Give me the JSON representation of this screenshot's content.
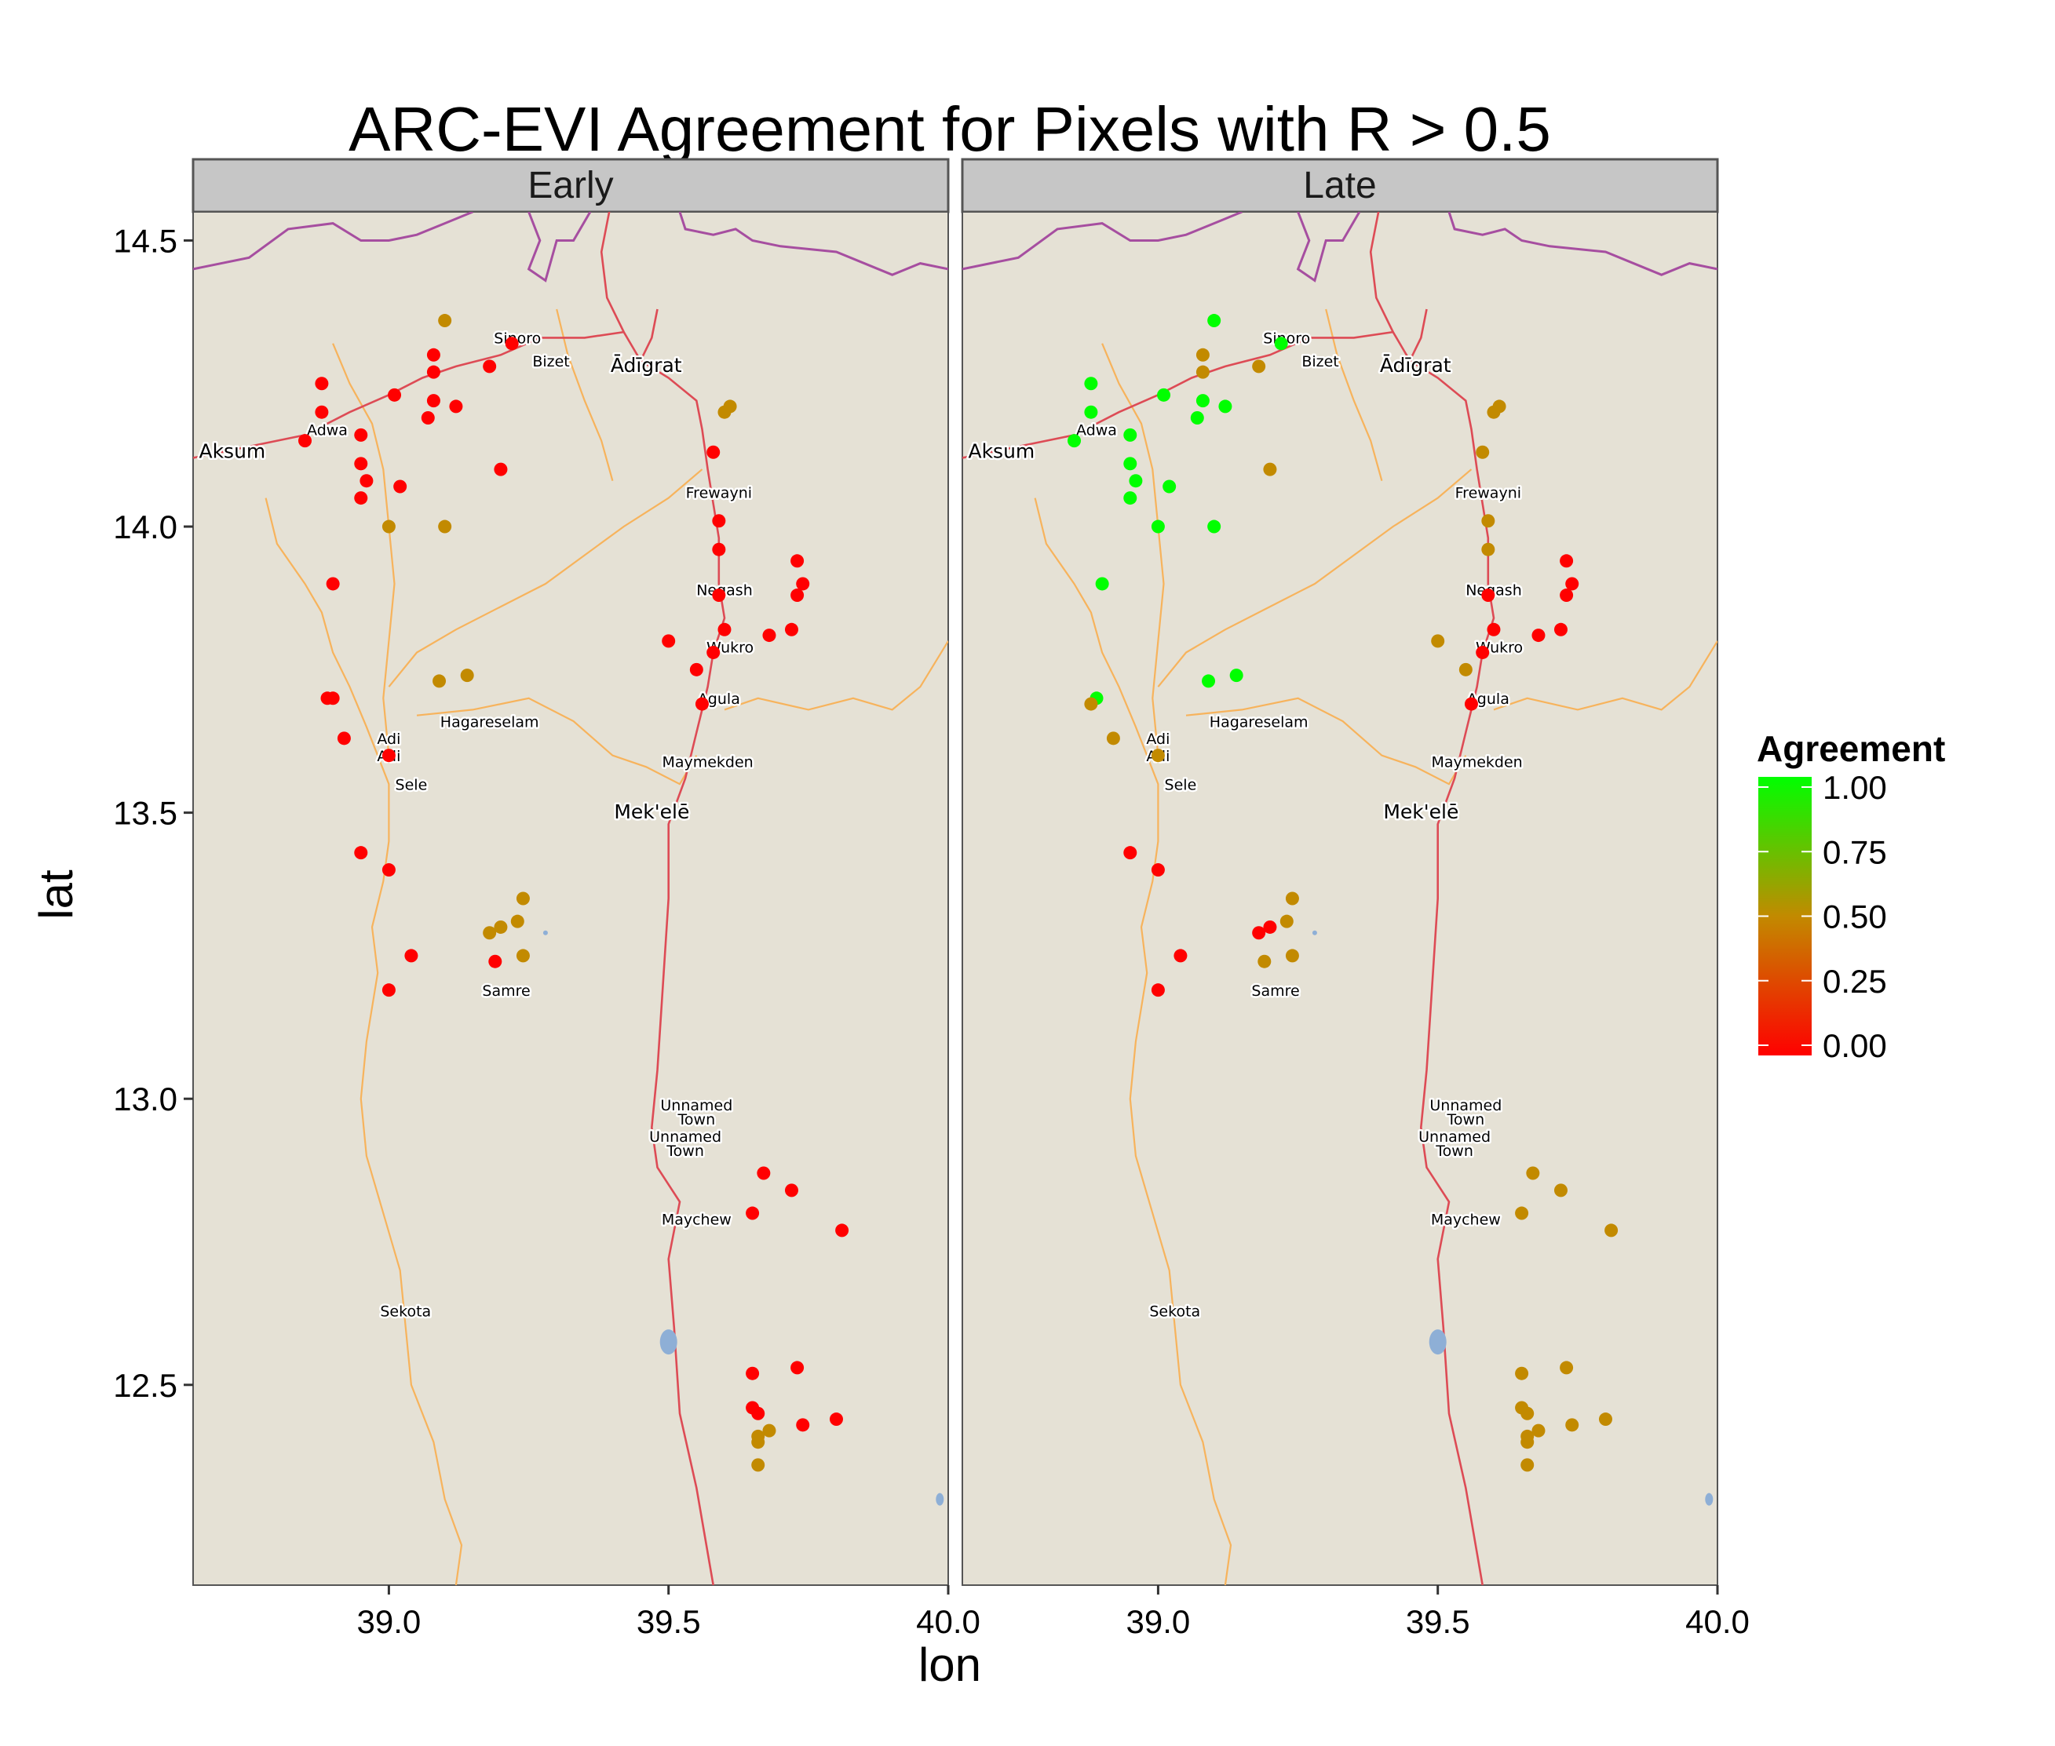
{
  "chart_data": {
    "type": "scatter",
    "title": "ARC-EVI Agreement for Pixels with R > 0.5",
    "xlabel": "lon",
    "ylabel": "lat",
    "xlim": [
      38.65,
      40.0
    ],
    "ylim": [
      12.15,
      14.55
    ],
    "x_ticks": [
      39.0,
      39.5,
      40.0
    ],
    "x_tick_labels": [
      "39.0",
      "39.5",
      "40.0"
    ],
    "y_ticks": [
      12.5,
      13.0,
      13.5,
      14.0,
      14.5
    ],
    "y_tick_labels": [
      "12.5",
      "13.0",
      "13.5",
      "14.0",
      "14.5"
    ],
    "grid": false,
    "legend": {
      "title": "Agreement",
      "position": "right",
      "ticks": [
        1.0,
        0.75,
        0.5,
        0.25,
        0.0
      ],
      "tick_labels": [
        "1.00",
        "0.75",
        "0.50",
        "0.25",
        "0.00"
      ],
      "gradient": [
        "#ff0000",
        "#c28a00",
        "#00ff00"
      ]
    },
    "colors": {
      "land": "#e5e1d5",
      "border": "#a64ea0",
      "road": "#dd4b55",
      "river": "#f7b35c",
      "water": "#8eafd6",
      "strip": "#c6c6c6"
    },
    "places": [
      {
        "name": "Sinoro",
        "lon": 39.23,
        "lat": 14.32,
        "major": false
      },
      {
        "name": "Bizet",
        "lon": 39.29,
        "lat": 14.28,
        "major": false
      },
      {
        "name": "Ādīgrat",
        "lon": 39.46,
        "lat": 14.27,
        "major": true
      },
      {
        "name": "Adwa",
        "lon": 38.89,
        "lat": 14.16,
        "major": false
      },
      {
        "name": "Aksum",
        "lon": 38.72,
        "lat": 14.12,
        "major": true
      },
      {
        "name": "Frewayni",
        "lon": 39.59,
        "lat": 14.05,
        "major": false
      },
      {
        "name": "Negash",
        "lon": 39.6,
        "lat": 13.88,
        "major": false
      },
      {
        "name": "Wukro",
        "lon": 39.61,
        "lat": 13.78,
        "major": false
      },
      {
        "name": "Agula",
        "lon": 39.59,
        "lat": 13.69,
        "major": false
      },
      {
        "name": "Hagareselam",
        "lon": 39.18,
        "lat": 13.65,
        "major": false
      },
      {
        "name": "Adi",
        "lon": 39.0,
        "lat": 13.62,
        "major": false
      },
      {
        "name": "Adi",
        "lon": 39.0,
        "lat": 13.59,
        "major": false
      },
      {
        "name": "Maymekden",
        "lon": 39.57,
        "lat": 13.58,
        "major": false
      },
      {
        "name": "Sele",
        "lon": 39.04,
        "lat": 13.54,
        "major": false
      },
      {
        "name": "Mek'elē",
        "lon": 39.47,
        "lat": 13.49,
        "major": true
      },
      {
        "name": "Samre",
        "lon": 39.21,
        "lat": 13.18,
        "major": false
      },
      {
        "name": "Unnamed",
        "lon": 39.55,
        "lat": 12.98,
        "major": false
      },
      {
        "name": "Town",
        "lon": 39.55,
        "lat": 12.955,
        "major": false
      },
      {
        "name": "Unnamed",
        "lon": 39.53,
        "lat": 12.925,
        "major": false
      },
      {
        "name": "Town",
        "lon": 39.53,
        "lat": 12.9,
        "major": false
      },
      {
        "name": "Maychew",
        "lon": 39.55,
        "lat": 12.78,
        "major": false
      },
      {
        "name": "Sekota",
        "lon": 39.03,
        "lat": 12.62,
        "major": false
      }
    ],
    "panels": [
      {
        "name": "Early",
        "points": [
          {
            "lon": 39.1,
            "lat": 14.36,
            "agreement": 0.5
          },
          {
            "lon": 39.08,
            "lat": 14.3,
            "agreement": 0.0
          },
          {
            "lon": 39.22,
            "lat": 14.32,
            "agreement": 0.0
          },
          {
            "lon": 39.08,
            "lat": 14.27,
            "agreement": 0.0
          },
          {
            "lon": 39.18,
            "lat": 14.28,
            "agreement": 0.0
          },
          {
            "lon": 38.88,
            "lat": 14.25,
            "agreement": 0.0
          },
          {
            "lon": 39.01,
            "lat": 14.23,
            "agreement": 0.0
          },
          {
            "lon": 39.08,
            "lat": 14.22,
            "agreement": 0.0
          },
          {
            "lon": 39.12,
            "lat": 14.21,
            "agreement": 0.0
          },
          {
            "lon": 38.88,
            "lat": 14.2,
            "agreement": 0.0
          },
          {
            "lon": 39.07,
            "lat": 14.19,
            "agreement": 0.0
          },
          {
            "lon": 38.95,
            "lat": 14.16,
            "agreement": 0.0
          },
          {
            "lon": 38.85,
            "lat": 14.15,
            "agreement": 0.0
          },
          {
            "lon": 38.95,
            "lat": 14.11,
            "agreement": 0.0
          },
          {
            "lon": 39.2,
            "lat": 14.1,
            "agreement": 0.0
          },
          {
            "lon": 38.96,
            "lat": 14.08,
            "agreement": 0.0
          },
          {
            "lon": 39.02,
            "lat": 14.07,
            "agreement": 0.0
          },
          {
            "lon": 38.95,
            "lat": 14.05,
            "agreement": 0.0
          },
          {
            "lon": 39.0,
            "lat": 14.0,
            "agreement": 0.5
          },
          {
            "lon": 39.1,
            "lat": 14.0,
            "agreement": 0.5
          },
          {
            "lon": 38.9,
            "lat": 13.9,
            "agreement": 0.0
          },
          {
            "lon": 39.09,
            "lat": 13.73,
            "agreement": 0.5
          },
          {
            "lon": 39.14,
            "lat": 13.74,
            "agreement": 0.5
          },
          {
            "lon": 38.89,
            "lat": 13.7,
            "agreement": 0.0
          },
          {
            "lon": 38.9,
            "lat": 13.7,
            "agreement": 0.0
          },
          {
            "lon": 38.92,
            "lat": 13.63,
            "agreement": 0.0
          },
          {
            "lon": 39.0,
            "lat": 13.6,
            "agreement": 0.0
          },
          {
            "lon": 38.95,
            "lat": 13.43,
            "agreement": 0.0
          },
          {
            "lon": 39.0,
            "lat": 13.4,
            "agreement": 0.0
          },
          {
            "lon": 39.24,
            "lat": 13.35,
            "agreement": 0.5
          },
          {
            "lon": 39.23,
            "lat": 13.31,
            "agreement": 0.5
          },
          {
            "lon": 39.2,
            "lat": 13.3,
            "agreement": 0.5
          },
          {
            "lon": 39.18,
            "lat": 13.29,
            "agreement": 0.5
          },
          {
            "lon": 39.24,
            "lat": 13.25,
            "agreement": 0.5
          },
          {
            "lon": 39.04,
            "lat": 13.25,
            "agreement": 0.0
          },
          {
            "lon": 39.19,
            "lat": 13.24,
            "agreement": 0.0
          },
          {
            "lon": 39.0,
            "lat": 13.19,
            "agreement": 0.0
          },
          {
            "lon": 39.61,
            "lat": 14.21,
            "agreement": 0.5
          },
          {
            "lon": 39.6,
            "lat": 14.2,
            "agreement": 0.5
          },
          {
            "lon": 39.58,
            "lat": 14.13,
            "agreement": 0.0
          },
          {
            "lon": 39.59,
            "lat": 14.01,
            "agreement": 0.0
          },
          {
            "lon": 39.59,
            "lat": 13.96,
            "agreement": 0.0
          },
          {
            "lon": 39.73,
            "lat": 13.94,
            "agreement": 0.0
          },
          {
            "lon": 39.74,
            "lat": 13.9,
            "agreement": 0.0
          },
          {
            "lon": 39.59,
            "lat": 13.88,
            "agreement": 0.0
          },
          {
            "lon": 39.73,
            "lat": 13.88,
            "agreement": 0.0
          },
          {
            "lon": 39.6,
            "lat": 13.82,
            "agreement": 0.0
          },
          {
            "lon": 39.72,
            "lat": 13.82,
            "agreement": 0.0
          },
          {
            "lon": 39.68,
            "lat": 13.81,
            "agreement": 0.0
          },
          {
            "lon": 39.5,
            "lat": 13.8,
            "agreement": 0.0
          },
          {
            "lon": 39.58,
            "lat": 13.78,
            "agreement": 0.0
          },
          {
            "lon": 39.55,
            "lat": 13.75,
            "agreement": 0.0
          },
          {
            "lon": 39.56,
            "lat": 13.69,
            "agreement": 0.0
          },
          {
            "lon": 39.67,
            "lat": 12.87,
            "agreement": 0.0
          },
          {
            "lon": 39.72,
            "lat": 12.84,
            "agreement": 0.0
          },
          {
            "lon": 39.65,
            "lat": 12.8,
            "agreement": 0.0
          },
          {
            "lon": 39.81,
            "lat": 12.77,
            "agreement": 0.0
          },
          {
            "lon": 39.73,
            "lat": 12.53,
            "agreement": 0.0
          },
          {
            "lon": 39.65,
            "lat": 12.52,
            "agreement": 0.0
          },
          {
            "lon": 39.65,
            "lat": 12.46,
            "agreement": 0.0
          },
          {
            "lon": 39.66,
            "lat": 12.45,
            "agreement": 0.0
          },
          {
            "lon": 39.8,
            "lat": 12.44,
            "agreement": 0.0
          },
          {
            "lon": 39.74,
            "lat": 12.43,
            "agreement": 0.0
          },
          {
            "lon": 39.68,
            "lat": 12.42,
            "agreement": 0.5
          },
          {
            "lon": 39.66,
            "lat": 12.41,
            "agreement": 0.5
          },
          {
            "lon": 39.66,
            "lat": 12.4,
            "agreement": 0.5
          },
          {
            "lon": 39.66,
            "lat": 12.36,
            "agreement": 0.5
          }
        ]
      },
      {
        "name": "Late",
        "points": [
          {
            "lon": 39.1,
            "lat": 14.36,
            "agreement": 1.0
          },
          {
            "lon": 39.08,
            "lat": 14.3,
            "agreement": 0.5
          },
          {
            "lon": 39.22,
            "lat": 14.32,
            "agreement": 1.0
          },
          {
            "lon": 39.08,
            "lat": 14.27,
            "agreement": 0.5
          },
          {
            "lon": 39.18,
            "lat": 14.28,
            "agreement": 0.5
          },
          {
            "lon": 38.88,
            "lat": 14.25,
            "agreement": 1.0
          },
          {
            "lon": 39.01,
            "lat": 14.23,
            "agreement": 1.0
          },
          {
            "lon": 39.08,
            "lat": 14.22,
            "agreement": 1.0
          },
          {
            "lon": 39.12,
            "lat": 14.21,
            "agreement": 1.0
          },
          {
            "lon": 38.88,
            "lat": 14.2,
            "agreement": 1.0
          },
          {
            "lon": 39.07,
            "lat": 14.19,
            "agreement": 1.0
          },
          {
            "lon": 38.95,
            "lat": 14.16,
            "agreement": 1.0
          },
          {
            "lon": 38.85,
            "lat": 14.15,
            "agreement": 1.0
          },
          {
            "lon": 38.95,
            "lat": 14.11,
            "agreement": 1.0
          },
          {
            "lon": 39.2,
            "lat": 14.1,
            "agreement": 0.5
          },
          {
            "lon": 38.96,
            "lat": 14.08,
            "agreement": 1.0
          },
          {
            "lon": 39.02,
            "lat": 14.07,
            "agreement": 1.0
          },
          {
            "lon": 38.95,
            "lat": 14.05,
            "agreement": 1.0
          },
          {
            "lon": 39.0,
            "lat": 14.0,
            "agreement": 1.0
          },
          {
            "lon": 39.1,
            "lat": 14.0,
            "agreement": 1.0
          },
          {
            "lon": 38.9,
            "lat": 13.9,
            "agreement": 1.0
          },
          {
            "lon": 39.09,
            "lat": 13.73,
            "agreement": 1.0
          },
          {
            "lon": 39.14,
            "lat": 13.74,
            "agreement": 1.0
          },
          {
            "lon": 38.89,
            "lat": 13.7,
            "agreement": 1.0
          },
          {
            "lon": 38.88,
            "lat": 13.69,
            "agreement": 0.5
          },
          {
            "lon": 38.92,
            "lat": 13.63,
            "agreement": 0.5
          },
          {
            "lon": 39.0,
            "lat": 13.6,
            "agreement": 0.5
          },
          {
            "lon": 38.95,
            "lat": 13.43,
            "agreement": 0.0
          },
          {
            "lon": 39.0,
            "lat": 13.4,
            "agreement": 0.0
          },
          {
            "lon": 39.24,
            "lat": 13.35,
            "agreement": 0.5
          },
          {
            "lon": 39.23,
            "lat": 13.31,
            "agreement": 0.5
          },
          {
            "lon": 39.2,
            "lat": 13.3,
            "agreement": 0.0
          },
          {
            "lon": 39.18,
            "lat": 13.29,
            "agreement": 0.0
          },
          {
            "lon": 39.24,
            "lat": 13.25,
            "agreement": 0.5
          },
          {
            "lon": 39.04,
            "lat": 13.25,
            "agreement": 0.0
          },
          {
            "lon": 39.19,
            "lat": 13.24,
            "agreement": 0.5
          },
          {
            "lon": 39.0,
            "lat": 13.19,
            "agreement": 0.0
          },
          {
            "lon": 39.61,
            "lat": 14.21,
            "agreement": 0.5
          },
          {
            "lon": 39.6,
            "lat": 14.2,
            "agreement": 0.5
          },
          {
            "lon": 39.58,
            "lat": 14.13,
            "agreement": 0.5
          },
          {
            "lon": 39.59,
            "lat": 14.01,
            "agreement": 0.5
          },
          {
            "lon": 39.59,
            "lat": 13.96,
            "agreement": 0.5
          },
          {
            "lon": 39.73,
            "lat": 13.94,
            "agreement": 0.0
          },
          {
            "lon": 39.74,
            "lat": 13.9,
            "agreement": 0.0
          },
          {
            "lon": 39.59,
            "lat": 13.88,
            "agreement": 0.0
          },
          {
            "lon": 39.73,
            "lat": 13.88,
            "agreement": 0.0
          },
          {
            "lon": 39.6,
            "lat": 13.82,
            "agreement": 0.0
          },
          {
            "lon": 39.72,
            "lat": 13.82,
            "agreement": 0.0
          },
          {
            "lon": 39.68,
            "lat": 13.81,
            "agreement": 0.0
          },
          {
            "lon": 39.5,
            "lat": 13.8,
            "agreement": 0.5
          },
          {
            "lon": 39.58,
            "lat": 13.78,
            "agreement": 0.0
          },
          {
            "lon": 39.55,
            "lat": 13.75,
            "agreement": 0.5
          },
          {
            "lon": 39.56,
            "lat": 13.69,
            "agreement": 0.0
          },
          {
            "lon": 39.67,
            "lat": 12.87,
            "agreement": 0.5
          },
          {
            "lon": 39.72,
            "lat": 12.84,
            "agreement": 0.5
          },
          {
            "lon": 39.65,
            "lat": 12.8,
            "agreement": 0.5
          },
          {
            "lon": 39.81,
            "lat": 12.77,
            "agreement": 0.5
          },
          {
            "lon": 39.73,
            "lat": 12.53,
            "agreement": 0.5
          },
          {
            "lon": 39.65,
            "lat": 12.52,
            "agreement": 0.5
          },
          {
            "lon": 39.65,
            "lat": 12.46,
            "agreement": 0.5
          },
          {
            "lon": 39.66,
            "lat": 12.45,
            "agreement": 0.5
          },
          {
            "lon": 39.8,
            "lat": 12.44,
            "agreement": 0.5
          },
          {
            "lon": 39.74,
            "lat": 12.43,
            "agreement": 0.5
          },
          {
            "lon": 39.68,
            "lat": 12.42,
            "agreement": 0.5
          },
          {
            "lon": 39.66,
            "lat": 12.41,
            "agreement": 0.5
          },
          {
            "lon": 39.66,
            "lat": 12.4,
            "agreement": 0.5
          },
          {
            "lon": 39.66,
            "lat": 12.36,
            "agreement": 0.5
          }
        ]
      }
    ]
  }
}
